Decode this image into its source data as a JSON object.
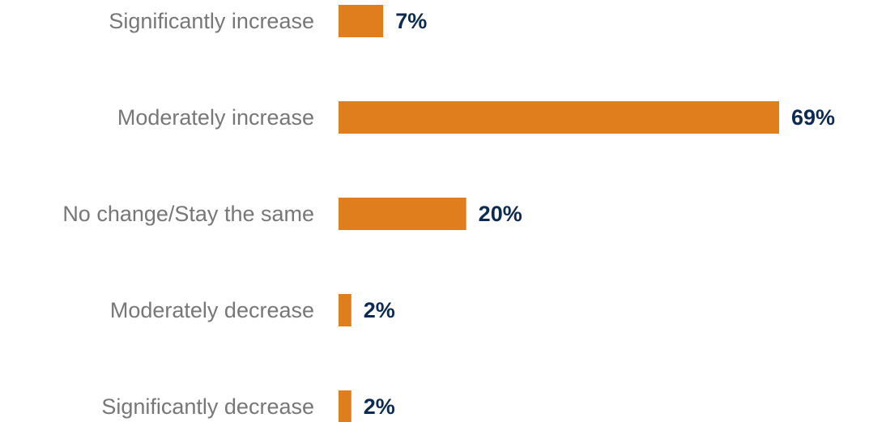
{
  "chart_data": {
    "type": "bar",
    "orientation": "horizontal",
    "categories": [
      "Significantly increase",
      "Moderately increase",
      "No change/Stay the same",
      "Moderately decrease",
      "Significantly decrease"
    ],
    "values": [
      7,
      69,
      20,
      2,
      2
    ],
    "value_labels": [
      "7%",
      "69%",
      "20%",
      "2%",
      "2%"
    ],
    "unit": "%",
    "xlim": [
      0,
      69
    ],
    "grid": false,
    "legend": "none",
    "colors": {
      "bar": "#e07d1d",
      "value_label": "#0d2a52",
      "category_label": "#777777"
    }
  }
}
